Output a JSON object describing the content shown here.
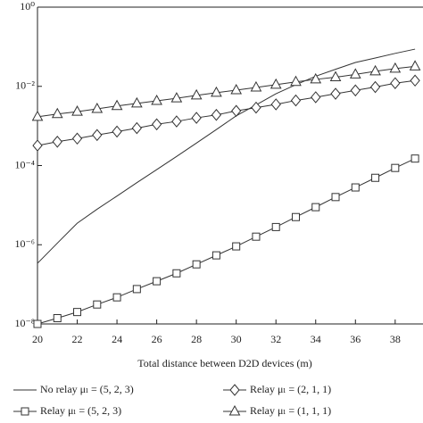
{
  "chart_data": {
    "type": "line",
    "x_label": "Total distance between D2D devices (m)",
    "x": [
      20,
      21,
      22,
      23,
      24,
      25,
      26,
      27,
      28,
      29,
      30,
      31,
      32,
      33,
      34,
      35,
      36,
      37,
      38,
      39
    ],
    "xlim": [
      20,
      39.4
    ],
    "xticks": [
      20,
      22,
      24,
      26,
      28,
      30,
      32,
      34,
      36,
      38
    ],
    "ylim": [
      1e-08,
      1
    ],
    "yticks": [
      {
        "value": 1e-08,
        "label": "10⁻⁸"
      },
      {
        "value": 1e-06,
        "label": "10⁻⁶"
      },
      {
        "value": 0.0001,
        "label": "10⁻⁴"
      },
      {
        "value": 0.01,
        "label": "10⁻²"
      },
      {
        "value": 1,
        "label": "10⁰"
      }
    ],
    "log_y": true,
    "series": [
      {
        "name": "No relay μₗ = (5, 2, 3)",
        "color": "#333333",
        "marker": "none",
        "values": [
          3.4e-07,
          1.1e-06,
          3.5e-06,
          7.9e-06,
          1.7e-05,
          3.7e-05,
          7.9e-05,
          0.00017,
          0.00037,
          0.00081,
          0.0018,
          0.0034,
          0.0065,
          0.011,
          0.018,
          0.027,
          0.04,
          0.052,
          0.068,
          0.087
        ]
      },
      {
        "name": "Relay μₗ = (5, 2, 3)",
        "color": "#333333",
        "marker": "square",
        "values": [
          1e-08,
          1.4e-08,
          2e-08,
          3.1e-08,
          4.7e-08,
          7.6e-08,
          1.2e-07,
          1.9e-07,
          3.2e-07,
          5.4e-07,
          9.1e-07,
          1.6e-06,
          2.8e-06,
          5e-06,
          8.9e-06,
          1.6e-05,
          2.8e-05,
          4.9e-05,
          8.7e-05,
          0.00015
        ]
      },
      {
        "name": "Relay μₗ = (2, 1, 1)",
        "color": "#333333",
        "marker": "diamond",
        "values": [
          0.00032,
          0.0004,
          0.00048,
          0.00059,
          0.00072,
          0.00088,
          0.0011,
          0.0013,
          0.0016,
          0.0019,
          0.0024,
          0.0029,
          0.0035,
          0.0044,
          0.0053,
          0.0065,
          0.0079,
          0.0096,
          0.012,
          0.014
        ]
      },
      {
        "name": "Relay μₗ = (1, 1, 1)",
        "color": "#333333",
        "marker": "triangle",
        "values": [
          0.0017,
          0.002,
          0.0023,
          0.0027,
          0.0032,
          0.0037,
          0.0043,
          0.005,
          0.0059,
          0.0069,
          0.008,
          0.0094,
          0.011,
          0.013,
          0.015,
          0.017,
          0.02,
          0.024,
          0.028,
          0.032
        ]
      }
    ]
  }
}
